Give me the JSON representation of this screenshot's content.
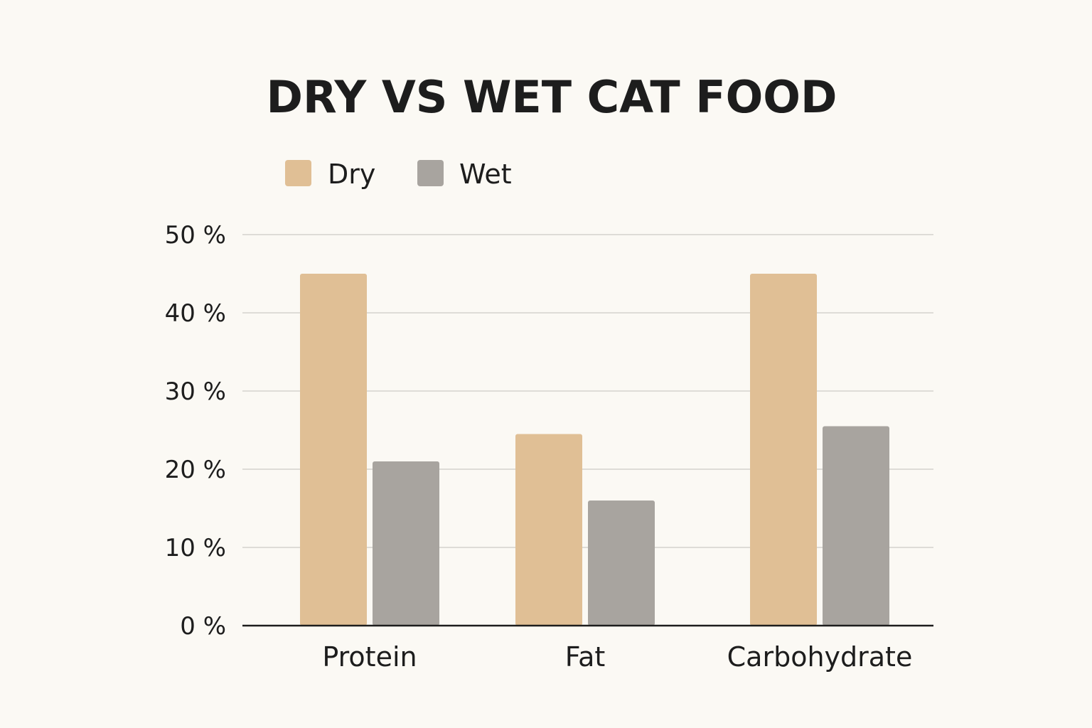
{
  "chart_data": {
    "type": "bar",
    "title": "DRY VS WET CAT FOOD",
    "xlabel": "",
    "ylabel": "",
    "categories": [
      "Protein",
      "Fat",
      "Carbohydrate"
    ],
    "series": [
      {
        "name": "Dry",
        "color": "#e0bf95",
        "values": [
          45,
          24.5,
          45
        ]
      },
      {
        "name": "Wet",
        "color": "#a8a49f",
        "values": [
          21,
          16,
          25.5
        ]
      }
    ],
    "ylim": [
      0,
      50
    ],
    "yticks": [
      0,
      10,
      20,
      30,
      40,
      50
    ],
    "ytick_labels": [
      "0 %",
      "10 %",
      "20 %",
      "30 %",
      "40 %",
      "50 %"
    ],
    "grid": true,
    "legend": "top-left"
  }
}
